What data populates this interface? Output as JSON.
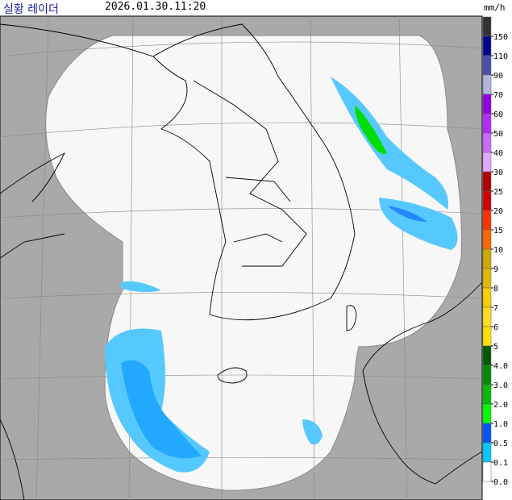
{
  "header": {
    "title": "실황 레이더",
    "time": "2026.01.30.11:20",
    "unit": "mm/h"
  },
  "legend": [
    {
      "label": "150",
      "color": "#333333"
    },
    {
      "label": "110",
      "color": "#000390"
    },
    {
      "label": "90",
      "color": "#4c4eb1"
    },
    {
      "label": "70",
      "color": "#b3b4de"
    },
    {
      "label": "60",
      "color": "#9300e4"
    },
    {
      "label": "50",
      "color": "#b329ff"
    },
    {
      "label": "40",
      "color": "#c969ff"
    },
    {
      "label": "30",
      "color": "#e0a9ff"
    },
    {
      "label": "25",
      "color": "#b40000"
    },
    {
      "label": "20",
      "color": "#d20000"
    },
    {
      "label": "15",
      "color": "#ff3300"
    },
    {
      "label": "10",
      "color": "#ff6600"
    },
    {
      "label": "9",
      "color": "#ccaa00"
    },
    {
      "label": "8",
      "color": "#e0b900"
    },
    {
      "label": "7",
      "color": "#f9cd00"
    },
    {
      "label": "6",
      "color": "#ffdc1f"
    },
    {
      "label": "5",
      "color": "#ffe100"
    },
    {
      "label": "4.0",
      "color": "#005a00"
    },
    {
      "label": "3.0",
      "color": "#008c00"
    },
    {
      "label": "2.0",
      "color": "#00be00"
    },
    {
      "label": "1.0",
      "color": "#00ff00"
    },
    {
      "label": "0.5",
      "color": "#0055ff"
    },
    {
      "label": "0.1",
      "color": "#00c8ff"
    },
    {
      "label": "0.0",
      "color": "#ffffff"
    }
  ]
}
